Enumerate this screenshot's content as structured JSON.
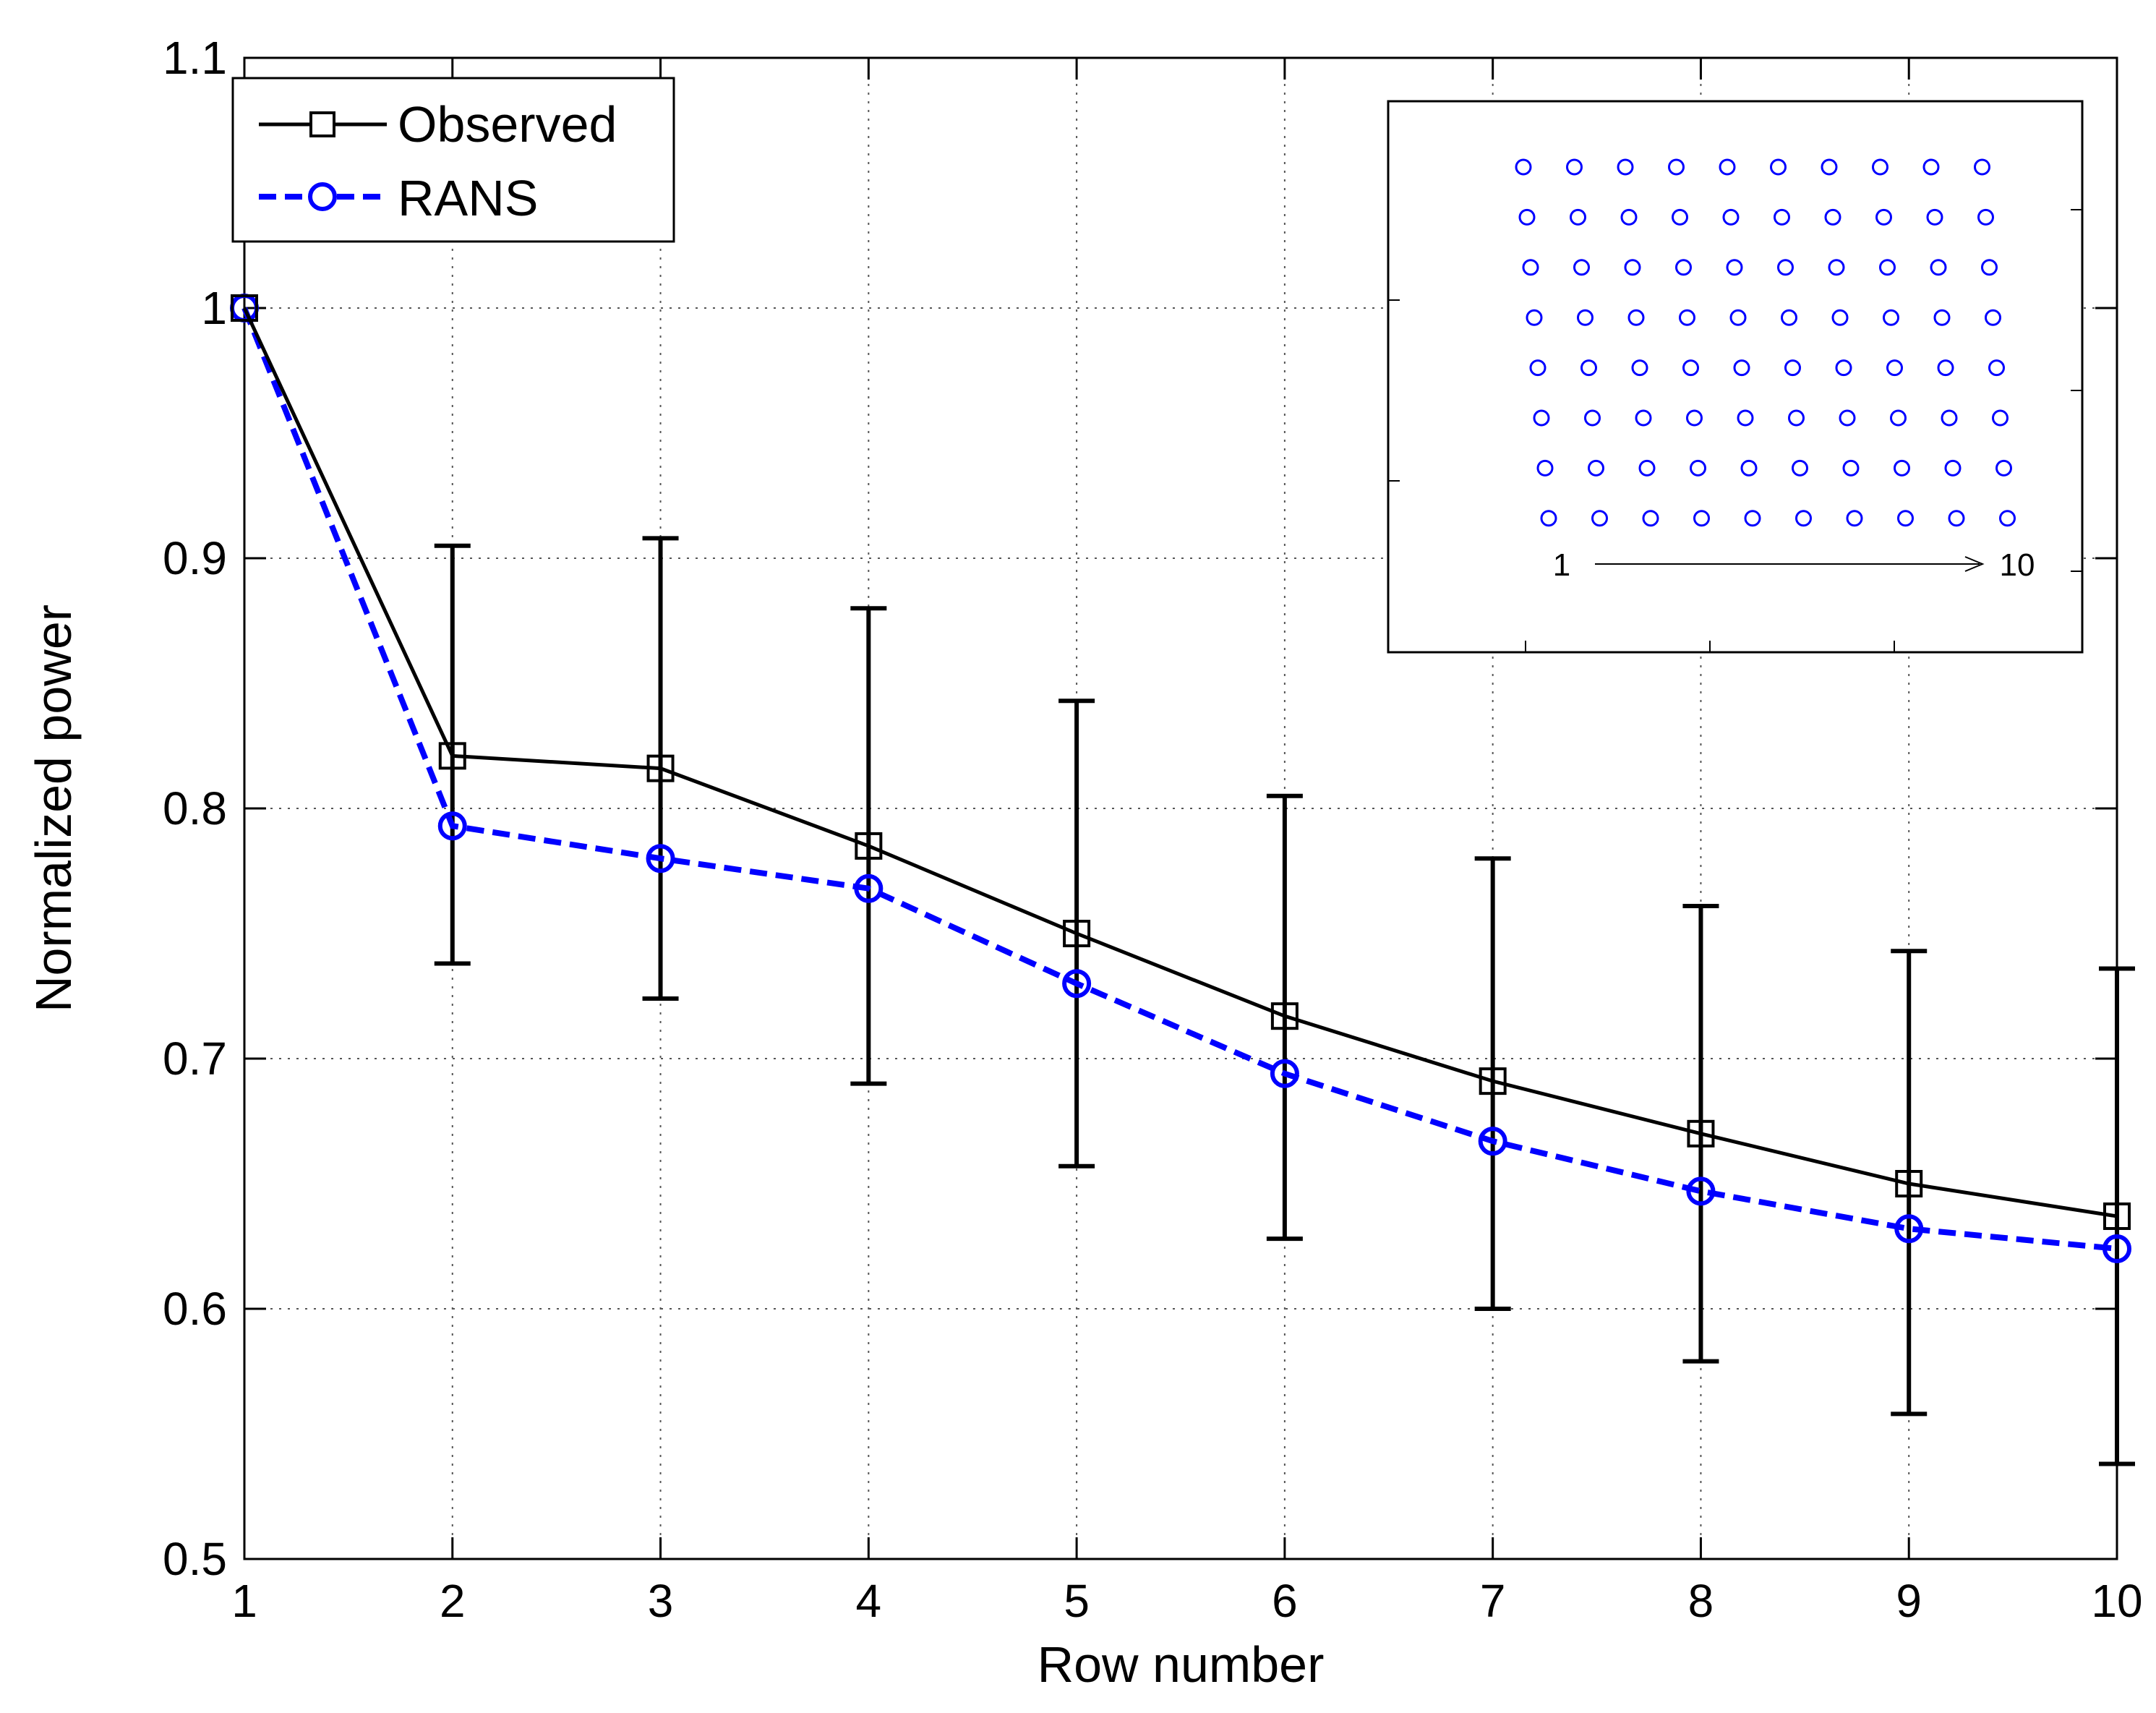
{
  "chart_data": {
    "type": "line",
    "xlabel": "Row number",
    "ylabel": "Normalized power",
    "xlim": [
      1,
      10
    ],
    "ylim": [
      0.5,
      1.1
    ],
    "x_ticks": [
      1,
      2,
      3,
      4,
      5,
      6,
      7,
      8,
      9,
      10
    ],
    "y_ticks": [
      0.5,
      0.6,
      0.7,
      0.8,
      0.9,
      1,
      1.1
    ],
    "y_tick_labels": [
      "0.5",
      "0.6",
      "0.7",
      "0.8",
      "0.9",
      "1",
      "1.1"
    ],
    "grid": true,
    "legend_position": "top-left",
    "series": [
      {
        "name": "Observed",
        "color": "#000000",
        "line_style": "solid",
        "marker": "square",
        "x": [
          1,
          2,
          3,
          4,
          5,
          6,
          7,
          8,
          9,
          10
        ],
        "values": [
          1.0,
          0.821,
          0.816,
          0.785,
          0.75,
          0.717,
          0.691,
          0.67,
          0.65,
          0.637
        ],
        "error_low": [
          null,
          0.738,
          0.724,
          0.69,
          0.657,
          0.628,
          0.6,
          0.579,
          0.558,
          0.538
        ],
        "error_high": [
          null,
          0.905,
          0.908,
          0.88,
          0.843,
          0.805,
          0.78,
          0.761,
          0.743,
          0.736
        ]
      },
      {
        "name": "RANS",
        "color": "#0000ff",
        "line_style": "dashed",
        "marker": "circle",
        "x": [
          1,
          2,
          3,
          4,
          5,
          6,
          7,
          8,
          9,
          10
        ],
        "values": [
          1.0,
          0.793,
          0.78,
          0.768,
          0.73,
          0.694,
          0.667,
          0.647,
          0.632,
          0.624
        ]
      }
    ],
    "inset": {
      "description": "wind farm layout",
      "rows": 10,
      "turbines_per_row": 8,
      "marker_color": "#0000ff",
      "arrow_start_label": "1",
      "arrow_end_label": "10"
    }
  }
}
